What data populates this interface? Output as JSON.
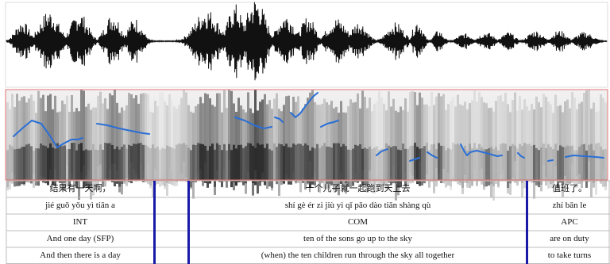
{
  "figure": {
    "colors": {
      "waveform": "#111111",
      "pitch_track": "#2a6fd6",
      "tier_boundary": "#1a1aa8",
      "grid_line": "#bcbcbc",
      "panel_border": "#e07070"
    },
    "tiers": [
      {
        "id": "hanzi",
        "cells": [
          "结果有一天啊，",
          "十个儿子就一起跑到天上去",
          "值班了。"
        ]
      },
      {
        "id": "pinyin",
        "cells": [
          "jié guǒ yǒu yì tiān a",
          "shí gè ér zi jiù yì qǐ pǎo dào tiān shàng qù",
          "zhí bān le"
        ]
      },
      {
        "id": "labels",
        "cells": [
          "INT",
          "COM",
          "APC"
        ]
      },
      {
        "id": "literal",
        "cells": [
          "And one day (SFP)",
          "ten of the sons go up to the sky",
          "are on duty"
        ]
      },
      {
        "id": "free",
        "cells": [
          "And then there is a day",
          "(when) the ten children run through the sky all together",
          "to take turns"
        ]
      }
    ]
  }
}
